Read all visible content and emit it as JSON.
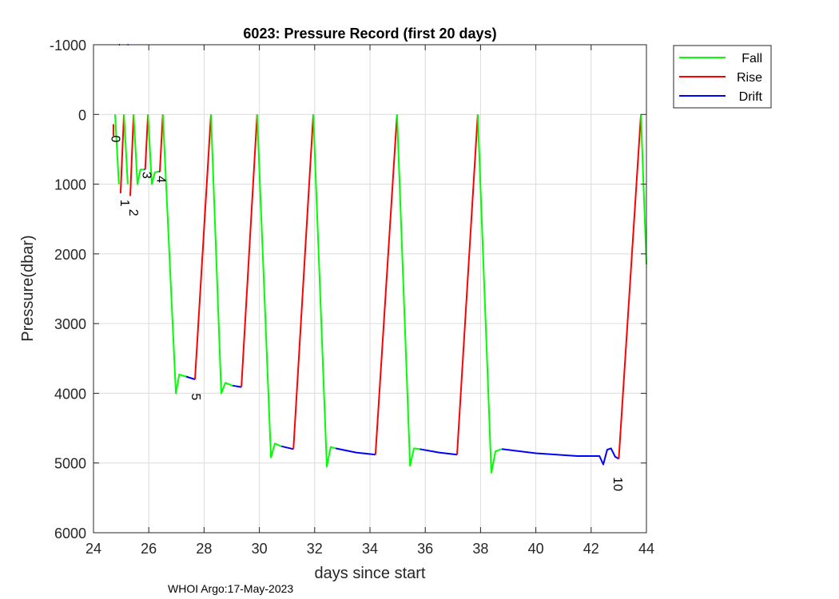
{
  "chart_data": {
    "type": "line",
    "title": "6023: Pressure Record (first 20 days)",
    "xlabel": "days since start",
    "ylabel": "Pressure(dbar)",
    "xlim": [
      24,
      44
    ],
    "ylim": [
      -1000,
      6000
    ],
    "y_reversed": true,
    "grid": true,
    "xticks": [
      24,
      26,
      28,
      30,
      32,
      34,
      36,
      38,
      40,
      42,
      44
    ],
    "yticks": [
      -1000,
      0,
      1000,
      2000,
      3000,
      4000,
      5000,
      6000
    ],
    "legend_position": "outside-top-right",
    "series": [
      {
        "name": "Fall",
        "color": "#00ff00"
      },
      {
        "name": "Rise",
        "color": "#ff0000"
      },
      {
        "name": "Drift",
        "color": "#0000ff"
      }
    ],
    "segments": [
      {
        "s": "Rise",
        "pts": [
          [
            24.72,
            310
          ],
          [
            24.72,
            140
          ]
        ]
      },
      {
        "s": "Fall",
        "pts": [
          [
            24.78,
            0
          ],
          [
            24.92,
            1000
          ]
        ]
      },
      {
        "s": "Rise",
        "pts": [
          [
            24.98,
            1130
          ],
          [
            25.1,
            0
          ]
        ]
      },
      {
        "s": "Fall",
        "pts": [
          [
            25.1,
            0
          ],
          [
            25.24,
            1000
          ]
        ]
      },
      {
        "s": "Rise",
        "pts": [
          [
            25.33,
            1170
          ],
          [
            25.45,
            0
          ]
        ]
      },
      {
        "s": "Fall",
        "pts": [
          [
            25.45,
            0
          ],
          [
            25.59,
            1000
          ],
          [
            25.7,
            790
          ],
          [
            25.83,
            790
          ]
        ]
      },
      {
        "s": "Drift",
        "pts": [
          [
            25.83,
            790
          ],
          [
            25.87,
            790
          ]
        ]
      },
      {
        "s": "Rise",
        "pts": [
          [
            25.87,
            790
          ],
          [
            25.97,
            0
          ]
        ]
      },
      {
        "s": "Fall",
        "pts": [
          [
            25.97,
            0
          ],
          [
            26.11,
            1000
          ],
          [
            26.22,
            830
          ],
          [
            26.36,
            820
          ]
        ]
      },
      {
        "s": "Drift",
        "pts": [
          [
            26.36,
            820
          ],
          [
            26.4,
            820
          ]
        ]
      },
      {
        "s": "Rise",
        "pts": [
          [
            26.4,
            820
          ],
          [
            26.51,
            0
          ]
        ]
      },
      {
        "s": "Fall",
        "pts": [
          [
            26.51,
            0
          ],
          [
            26.98,
            4000
          ],
          [
            27.1,
            3730
          ],
          [
            27.35,
            3760
          ]
        ]
      },
      {
        "s": "Drift",
        "pts": [
          [
            27.35,
            3760
          ],
          [
            27.67,
            3800
          ]
        ]
      },
      {
        "s": "Rise",
        "pts": [
          [
            27.67,
            3800
          ],
          [
            28.25,
            0
          ]
        ]
      },
      {
        "s": "Fall",
        "pts": [
          [
            28.25,
            0
          ],
          [
            28.62,
            4000
          ],
          [
            28.77,
            3850
          ],
          [
            29.03,
            3890
          ]
        ]
      },
      {
        "s": "Drift",
        "pts": [
          [
            29.03,
            3890
          ],
          [
            29.35,
            3910
          ]
        ]
      },
      {
        "s": "Rise",
        "pts": [
          [
            29.35,
            3910
          ],
          [
            29.92,
            0
          ]
        ]
      },
      {
        "s": "Fall",
        "pts": [
          [
            29.92,
            0
          ],
          [
            30.42,
            4920
          ],
          [
            30.56,
            4720
          ],
          [
            30.8,
            4760
          ]
        ]
      },
      {
        "s": "Drift",
        "pts": [
          [
            30.8,
            4760
          ],
          [
            31.23,
            4800
          ]
        ]
      },
      {
        "s": "Rise",
        "pts": [
          [
            31.23,
            4800
          ],
          [
            31.95,
            0
          ]
        ]
      },
      {
        "s": "Fall",
        "pts": [
          [
            31.95,
            0
          ],
          [
            32.44,
            5050
          ],
          [
            32.58,
            4770
          ],
          [
            32.76,
            4790
          ]
        ]
      },
      {
        "s": "Drift",
        "pts": [
          [
            32.76,
            4790
          ],
          [
            33.5,
            4850
          ],
          [
            34.2,
            4880
          ]
        ]
      },
      {
        "s": "Rise",
        "pts": [
          [
            34.2,
            4880
          ],
          [
            34.98,
            0
          ]
        ]
      },
      {
        "s": "Fall",
        "pts": [
          [
            34.98,
            0
          ],
          [
            35.45,
            5040
          ],
          [
            35.59,
            4790
          ],
          [
            35.8,
            4800
          ]
        ]
      },
      {
        "s": "Drift",
        "pts": [
          [
            35.8,
            4800
          ],
          [
            36.5,
            4850
          ],
          [
            37.15,
            4880
          ]
        ]
      },
      {
        "s": "Rise",
        "pts": [
          [
            37.15,
            4880
          ],
          [
            37.9,
            0
          ]
        ]
      },
      {
        "s": "Fall",
        "pts": [
          [
            37.9,
            0
          ],
          [
            38.39,
            5140
          ],
          [
            38.54,
            4830
          ],
          [
            38.77,
            4800
          ]
        ]
      },
      {
        "s": "Drift",
        "pts": [
          [
            38.77,
            4800
          ],
          [
            40,
            4860
          ],
          [
            41.5,
            4900
          ],
          [
            42.3,
            4900
          ],
          [
            42.44,
            5020
          ],
          [
            42.58,
            4810
          ],
          [
            42.72,
            4790
          ],
          [
            42.87,
            4910
          ],
          [
            43.0,
            4940
          ]
        ]
      },
      {
        "s": "Rise",
        "pts": [
          [
            43.0,
            4940
          ],
          [
            43.8,
            0
          ]
        ]
      },
      {
        "s": "Fall",
        "pts": [
          [
            43.8,
            0
          ],
          [
            44.0,
            2150
          ]
        ]
      },
      {
        "s": "Drift",
        "pts": [
          [
            24.92,
            -1000
          ],
          [
            24.95,
            -1000
          ]
        ]
      },
      {
        "s": "Drift",
        "pts": [
          [
            25.23,
            -1000
          ],
          [
            25.26,
            -1000
          ]
        ]
      }
    ],
    "profile_labels": [
      {
        "text": "0",
        "day": 24.65,
        "p": 300
      },
      {
        "text": "1",
        "day": 24.98,
        "p": 1220
      },
      {
        "text": "2",
        "day": 25.3,
        "p": 1220
      },
      {
        "text": "3",
        "day": 25.78,
        "p": 820
      },
      {
        "text": "4",
        "day": 26.3,
        "p": 880
      },
      {
        "text": "5",
        "day": 27.55,
        "p": 4000
      },
      {
        "text": "10",
        "day": 42.82,
        "p": 5200
      }
    ]
  },
  "footer": "WHOI Argo:17-May-2023"
}
